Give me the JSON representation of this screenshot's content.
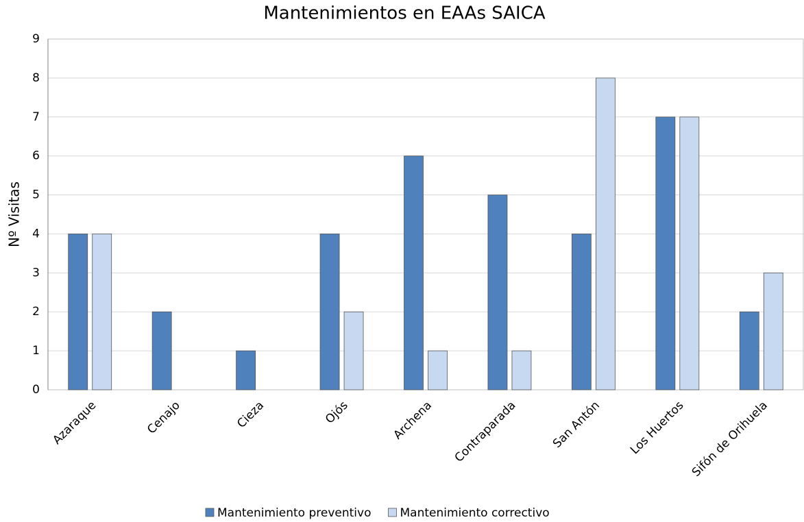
{
  "chart_data": {
    "type": "bar",
    "title": "Mantenimientos en EAAs SAICA",
    "y_label": "Nº Visitas",
    "categories": [
      "Azaraque",
      "Cenajo",
      "Cieza",
      "Ojós",
      "Archena",
      "Contraparada",
      "San Antón",
      "Los Huertos",
      "Sifón de Orihuela"
    ],
    "series": [
      {
        "name": "Mantenimiento preventivo",
        "color": "#4f81bd",
        "values": [
          4,
          2,
          1,
          4,
          6,
          5,
          4,
          7,
          2
        ]
      },
      {
        "name": "Mantenimiento correctivo",
        "color": "#c6d9f1",
        "values": [
          4,
          0,
          0,
          2,
          1,
          1,
          8,
          7,
          3
        ]
      }
    ],
    "ylim": [
      0,
      9
    ],
    "yticks": [
      0,
      1,
      2,
      3,
      4,
      5,
      6,
      7,
      8,
      9
    ],
    "grid": true,
    "legend": "bottom"
  }
}
